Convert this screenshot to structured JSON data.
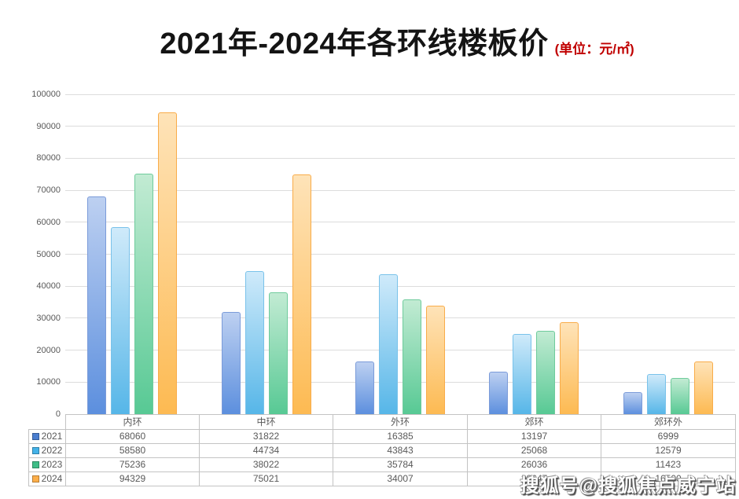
{
  "title": "2021年-2024年各环线楼板价",
  "subtitle": "(单位：元/㎡)",
  "watermark": "搜狐号@搜狐焦点威宁站",
  "colors": {
    "title_text": "#141414",
    "subtitle_text": "#c00000",
    "axis_text": "#595959",
    "table_border": "#c3c3c3",
    "gridline": "#dcdcdc"
  },
  "chart_data": {
    "type": "bar",
    "title": "2021年-2024年各环线楼板价",
    "unit_label": "(单位：元/㎡)",
    "categories": [
      "内环",
      "中环",
      "外环",
      "郊环",
      "郊环外"
    ],
    "series": [
      {
        "name": "2021",
        "values": [
          68060,
          31822,
          16385,
          13197,
          6999
        ],
        "legend_color": "#4a7ed0",
        "fill_top": "#bdd0f1",
        "fill_bottom": "#5c8fde",
        "border": "#7b9bd9"
      },
      {
        "name": "2022",
        "values": [
          58580,
          44734,
          43843,
          25068,
          12579
        ],
        "legend_color": "#43b2e8",
        "fill_top": "#cfeafa",
        "fill_bottom": "#56b6e8",
        "border": "#79c2ea"
      },
      {
        "name": "2023",
        "values": [
          75236,
          38022,
          35784,
          26036,
          11423
        ],
        "legend_color": "#3fbd87",
        "fill_top": "#c2ebd3",
        "fill_bottom": "#57c994",
        "border": "#6fcb9c"
      },
      {
        "name": "2024",
        "values": [
          94329,
          75021,
          34007,
          28647,
          16500
        ],
        "legend_color": "#fcae49",
        "fill_top": "#fee3b8",
        "fill_bottom": "#fdba52",
        "border": "#f9ac49"
      }
    ],
    "xlabel": "",
    "ylabel": "",
    "ylim": [
      0,
      100000
    ],
    "ytick_step": 10000,
    "grid": true,
    "legend_position": "table-left"
  }
}
